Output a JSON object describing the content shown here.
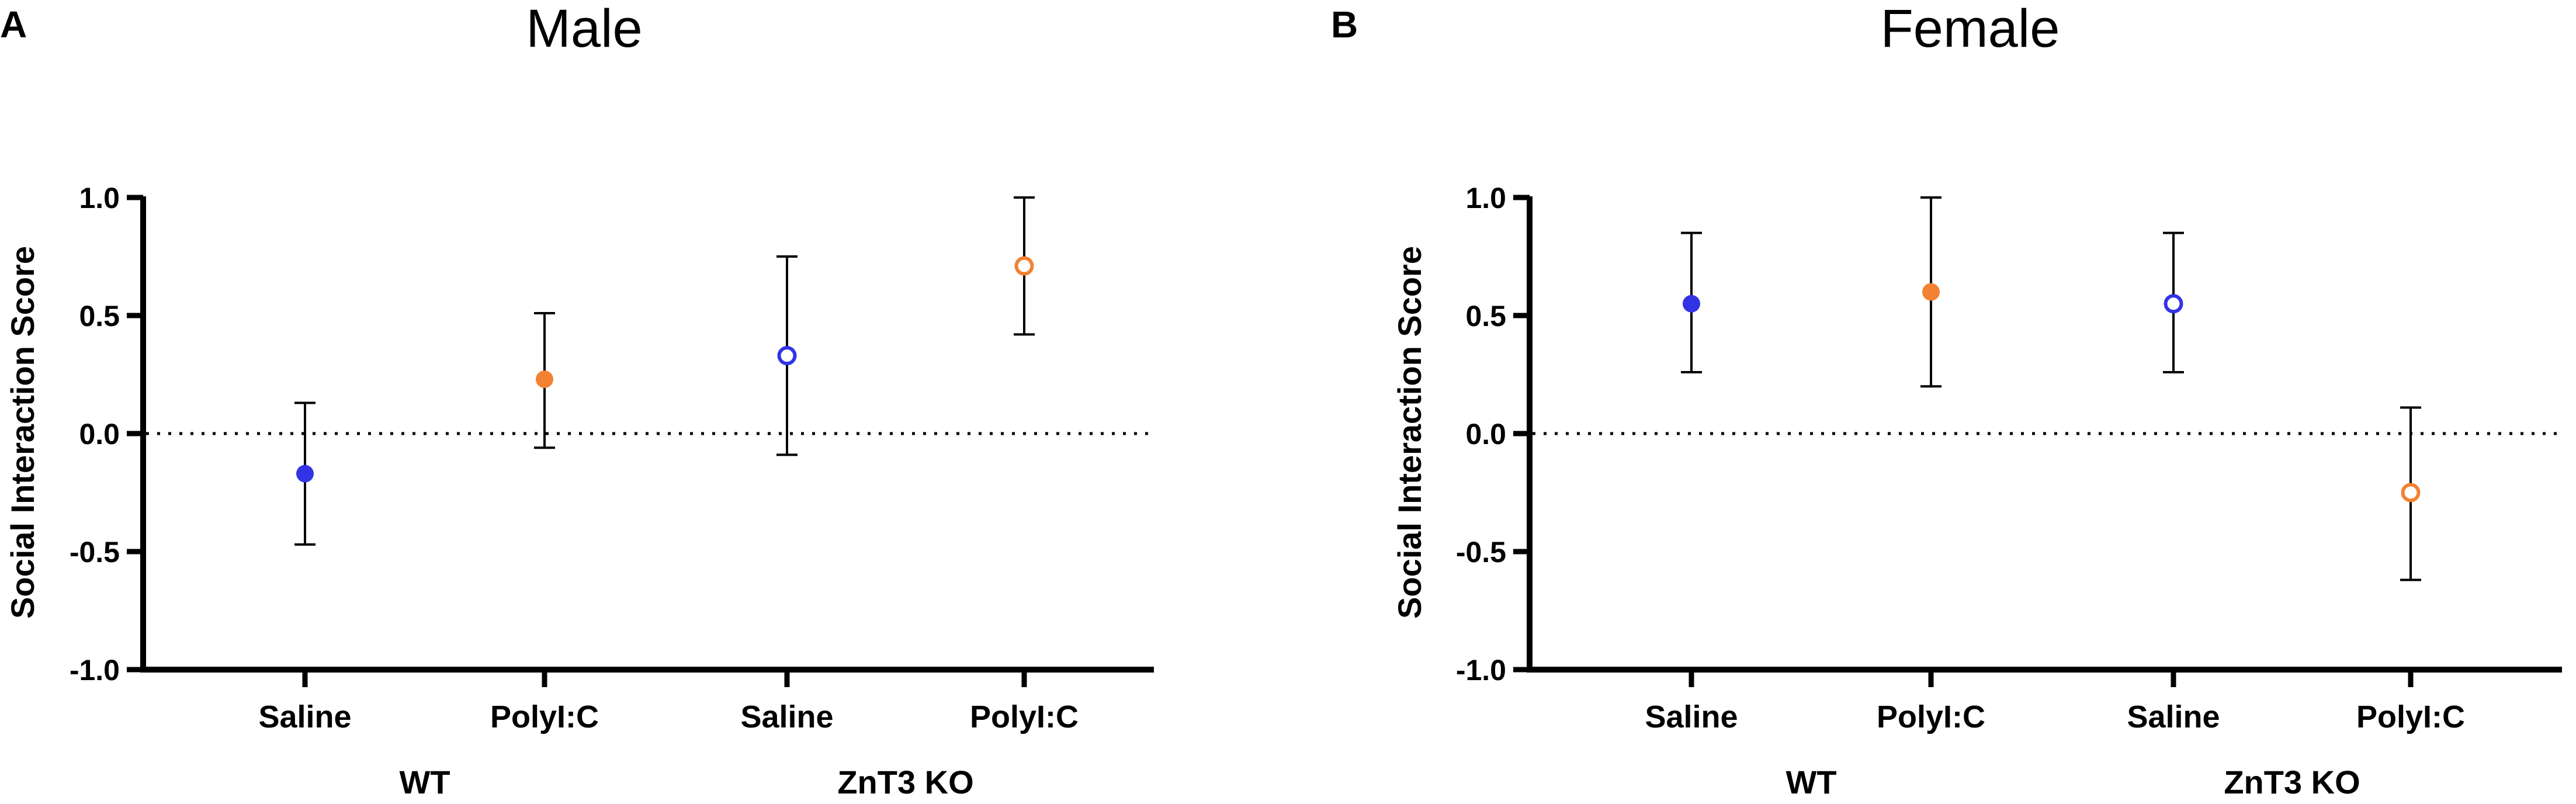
{
  "figure": {
    "background": "#ffffff"
  },
  "colors": {
    "saline": "#3333e6",
    "polyic": "#f28133",
    "axis": "#000000"
  },
  "chart_data": [
    {
      "type": "scatter",
      "panel": "A",
      "title": "Male",
      "ylabel": "Social Interaction Score",
      "xlabel": "",
      "ylim": [
        -1.0,
        1.0
      ],
      "yticks": [
        -1.0,
        -0.5,
        0.0,
        0.5,
        1.0
      ],
      "ytick_labels": [
        "-1.0",
        "-0.5",
        "0.0",
        "0.5",
        "1.0"
      ],
      "reference_line": {
        "y": 0,
        "style": "dotted"
      },
      "categories": [
        "Saline",
        "PolyI:C",
        "Saline",
        "PolyI:C"
      ],
      "groups": [
        {
          "label": "WT",
          "span": [
            0,
            1
          ]
        },
        {
          "label": "ZnT3 KO",
          "span": [
            2,
            3
          ]
        }
      ],
      "series": [
        {
          "name": "WT Saline",
          "category_index": 0,
          "mean": -0.17,
          "err_low": -0.47,
          "err_high": 0.13,
          "color": "#3333e6",
          "filled": true
        },
        {
          "name": "WT PolyI:C",
          "category_index": 1,
          "mean": 0.23,
          "err_low": -0.06,
          "err_high": 0.51,
          "color": "#f28133",
          "filled": true
        },
        {
          "name": "ZnT3 KO Saline",
          "category_index": 2,
          "mean": 0.33,
          "err_low": -0.09,
          "err_high": 0.75,
          "color": "#3333e6",
          "filled": false
        },
        {
          "name": "ZnT3 KO PolyI:C",
          "category_index": 3,
          "mean": 0.71,
          "err_low": 0.42,
          "err_high": 1.0,
          "color": "#f28133",
          "filled": false
        }
      ]
    },
    {
      "type": "scatter",
      "panel": "B",
      "title": "Female",
      "ylabel": "Social Interaction Score",
      "xlabel": "",
      "ylim": [
        -1.0,
        1.0
      ],
      "yticks": [
        -1.0,
        -0.5,
        0.0,
        0.5,
        1.0
      ],
      "ytick_labels": [
        "-1.0",
        "-0.5",
        "0.0",
        "0.5",
        "1.0"
      ],
      "reference_line": {
        "y": 0,
        "style": "dotted"
      },
      "categories": [
        "Saline",
        "PolyI:C",
        "Saline",
        "PolyI:C"
      ],
      "groups": [
        {
          "label": "WT",
          "span": [
            0,
            1
          ]
        },
        {
          "label": "ZnT3 KO",
          "span": [
            2,
            3
          ]
        }
      ],
      "series": [
        {
          "name": "WT Saline",
          "category_index": 0,
          "mean": 0.55,
          "err_low": 0.26,
          "err_high": 0.85,
          "color": "#3333e6",
          "filled": true
        },
        {
          "name": "WT PolyI:C",
          "category_index": 1,
          "mean": 0.6,
          "err_low": 0.2,
          "err_high": 1.0,
          "color": "#f28133",
          "filled": true
        },
        {
          "name": "ZnT3 KO Saline",
          "category_index": 2,
          "mean": 0.55,
          "err_low": 0.26,
          "err_high": 0.85,
          "color": "#3333e6",
          "filled": false
        },
        {
          "name": "ZnT3 KO PolyI:C",
          "category_index": 3,
          "mean": -0.25,
          "err_low": -0.62,
          "err_high": 0.11,
          "color": "#f28133",
          "filled": false
        }
      ]
    }
  ]
}
